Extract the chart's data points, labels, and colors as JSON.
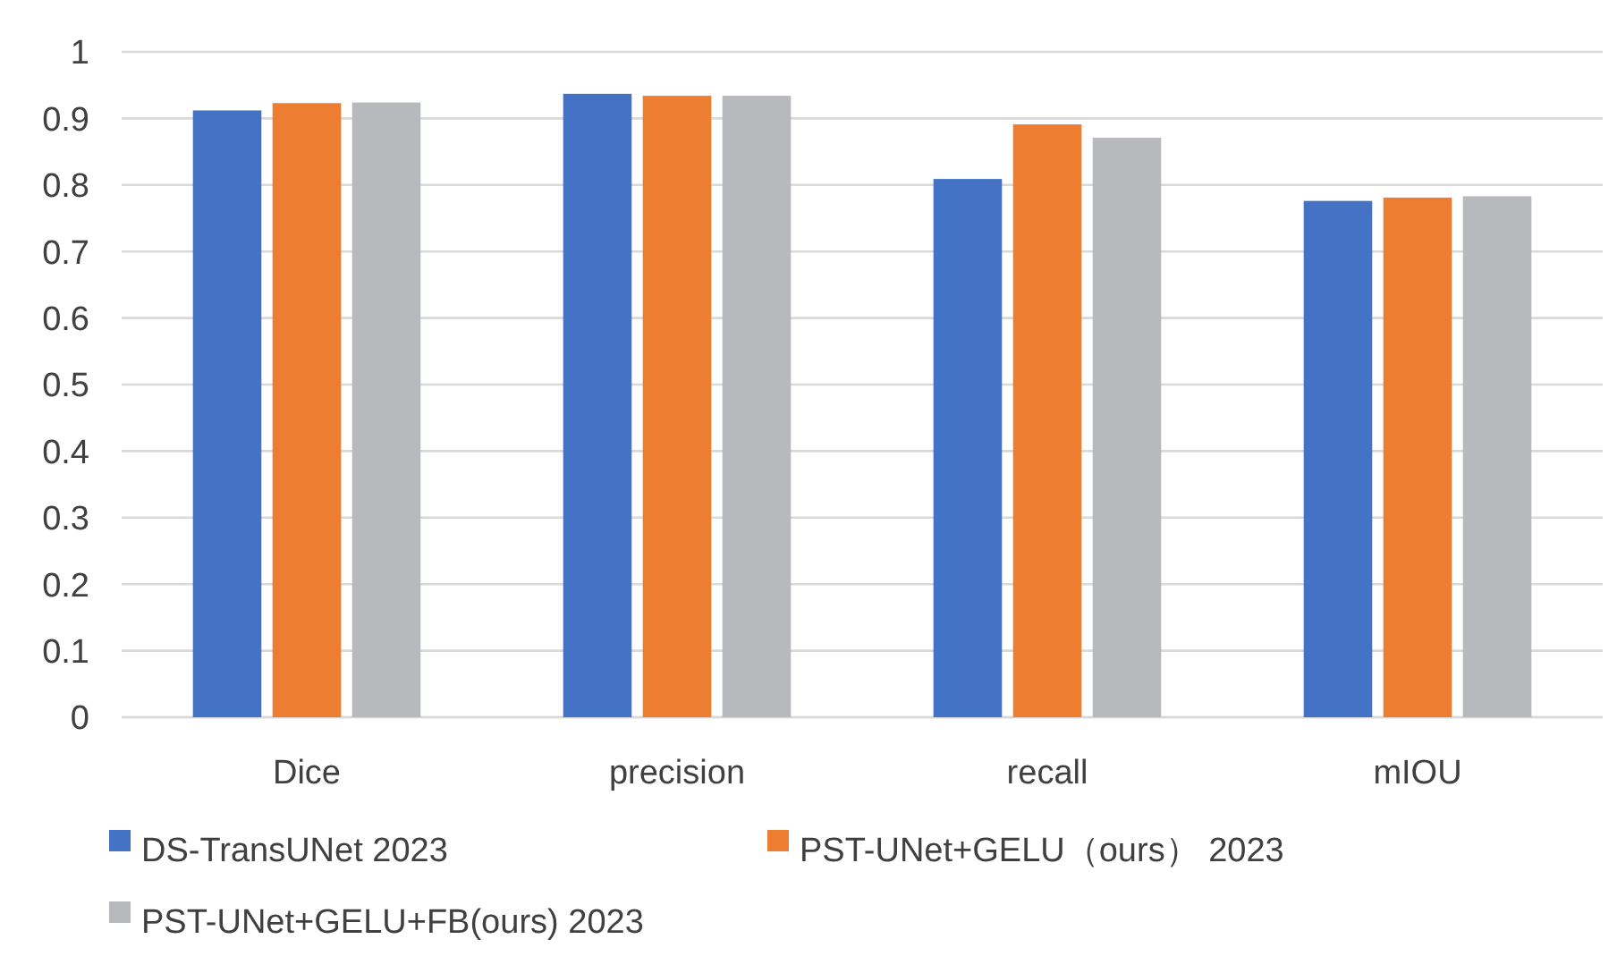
{
  "chart_data": {
    "type": "bar",
    "categories": [
      "Dice",
      "precision",
      "recall",
      "mIOU"
    ],
    "series": [
      {
        "name": "DS-TransUNet 2023",
        "color": "#4472c4",
        "values": [
          0.912,
          0.937,
          0.809,
          0.776
        ]
      },
      {
        "name": "PST-UNet+GELU（ours） 2023",
        "color": "#ed7d31",
        "values": [
          0.923,
          0.934,
          0.891,
          0.781
        ]
      },
      {
        "name": "PST-UNet+GELU+FB(ours) 2023",
        "color": "#b8b9bc",
        "values": [
          0.924,
          0.934,
          0.871,
          0.783
        ]
      }
    ],
    "ylim": [
      0,
      1
    ],
    "yticks": [
      0,
      0.1,
      0.2,
      0.3,
      0.4,
      0.5,
      0.6,
      0.7,
      0.8,
      0.9,
      1
    ],
    "grid": "y",
    "legend": "bottom"
  }
}
